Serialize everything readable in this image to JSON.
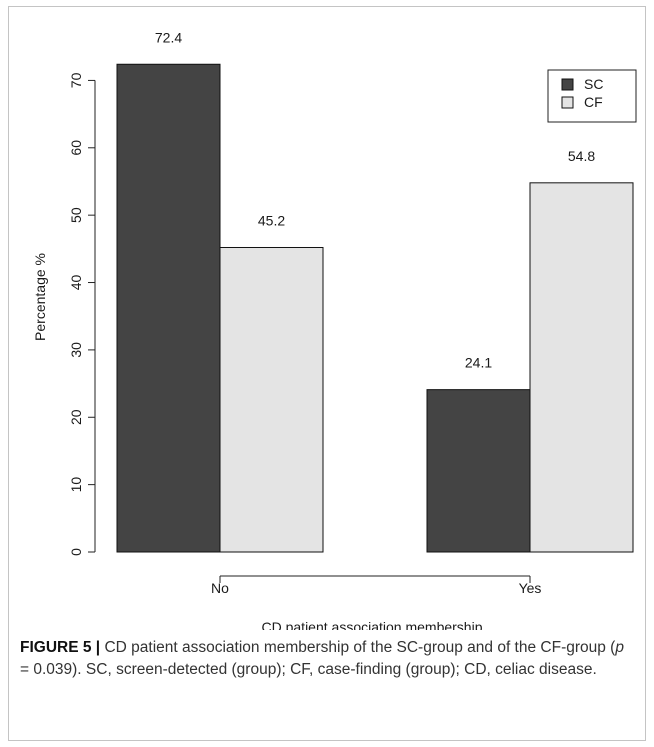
{
  "chart_data": {
    "type": "bar",
    "categories": [
      "No",
      "Yes"
    ],
    "series": [
      {
        "name": "SC",
        "values": [
          72.4,
          24.1
        ],
        "color": "#444444",
        "labels": [
          "72.4",
          "24.1"
        ]
      },
      {
        "name": "CF",
        "values": [
          45.2,
          54.8
        ],
        "color": "#e4e4e4",
        "labels": [
          "45.2",
          "54.8"
        ]
      }
    ],
    "xlabel": "CD patient association membership",
    "ylabel": "Percentage %",
    "ylim": [
      0,
      76
    ],
    "yticks": [
      0,
      10,
      20,
      30,
      40,
      50,
      60,
      70
    ],
    "legend_position": "top-right",
    "grid": false
  },
  "caption": {
    "label": "FIGURE 5 |",
    "text_1": " CD patient association membership of the SC-group and of the CF-group (",
    "p_symbol": "p",
    "text_2": " = 0.039). SC, screen-detected (group); CF, case-finding (group); CD, celiac disease."
  }
}
